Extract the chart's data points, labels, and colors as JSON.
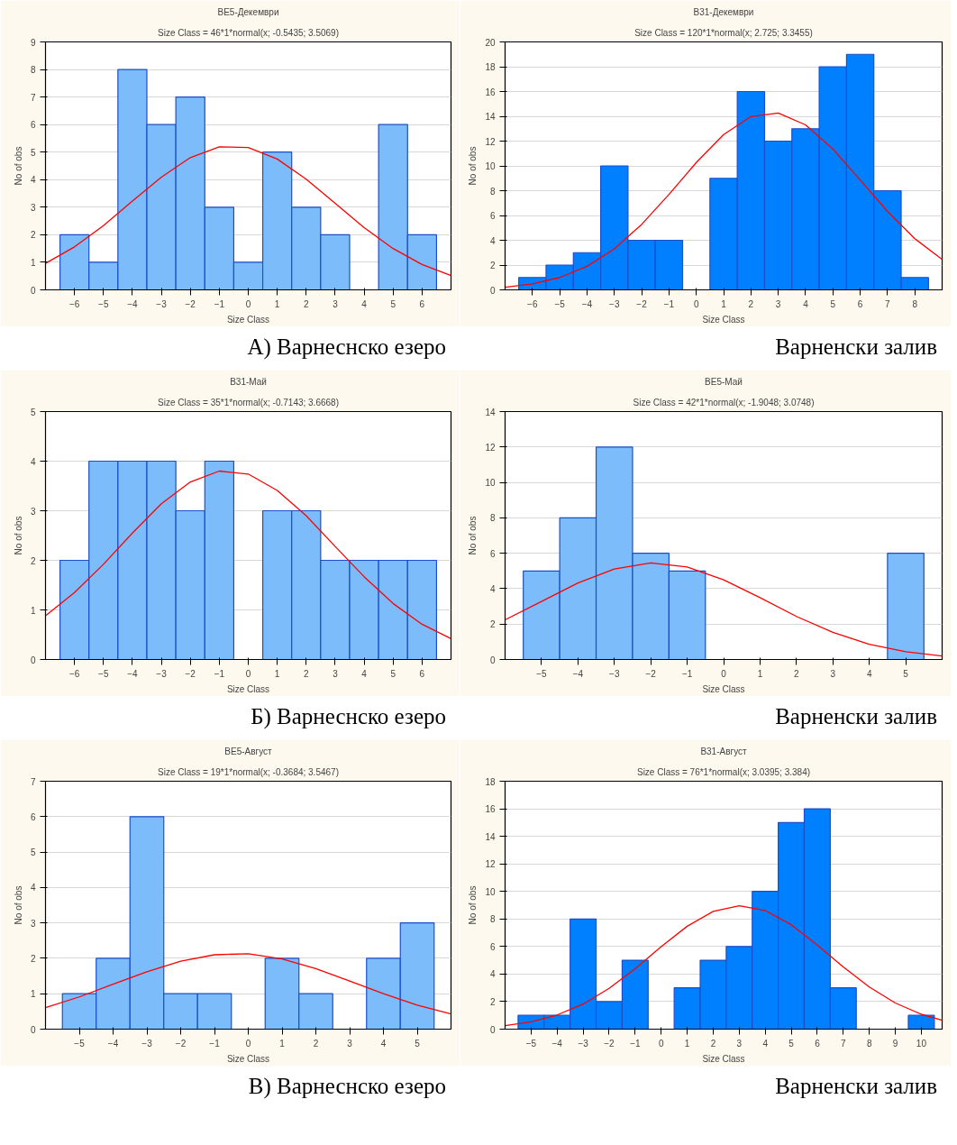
{
  "chart_data": [
    {
      "type": "histogram",
      "title": "BE5-Декември",
      "subtitle": "Size Class = 46*1*normal(x; -0.5435; 3.5069)",
      "xlabel": "Size Class",
      "ylabel": "No of obs",
      "xlim": [
        -7,
        7
      ],
      "ylim": [
        0,
        9
      ],
      "xticks": [
        -6,
        -5,
        -4,
        -3,
        -2,
        -1,
        0,
        1,
        2,
        3,
        4,
        5,
        6
      ],
      "yticks": [
        0,
        1,
        2,
        3,
        4,
        5,
        6,
        7,
        8,
        9
      ],
      "grid": "y",
      "annotations": [
        "А) Варнеснско езеро"
      ],
      "series": [
        {
          "color": "#7dbcfb",
          "bins": [
            -6.5,
            -5.5,
            -4.5,
            -3.5,
            -2.5,
            -1.5,
            -0.5,
            0.5,
            1.5,
            2.5,
            3.5,
            4.5,
            5.5,
            6.5
          ],
          "values": [
            2,
            1,
            8,
            6,
            7,
            3,
            1,
            5,
            3,
            2,
            0,
            6,
            2
          ]
        },
        {
          "type": "line",
          "color": "#ff0000",
          "x": [
            -7,
            -6,
            -5,
            -4,
            -3,
            -2,
            -1,
            0,
            1,
            2,
            3,
            4,
            5,
            6,
            7
          ],
          "values": [
            0.96,
            1.56,
            2.33,
            3.22,
            4.09,
            4.8,
            5.19,
            5.17,
            4.75,
            4.02,
            3.14,
            2.26,
            1.5,
            0.92,
            0.52
          ]
        }
      ]
    },
    {
      "type": "histogram",
      "title": "B31-Декември",
      "subtitle": "Size Class = 120*1*normal(x; 2.725; 3.3455)",
      "xlabel": "Size Class",
      "ylabel": "No of obs",
      "xlim": [
        -7,
        9
      ],
      "ylim": [
        0,
        20
      ],
      "xticks": [
        -6,
        -5,
        -4,
        -3,
        -2,
        -1,
        0,
        1,
        2,
        3,
        4,
        5,
        6,
        7,
        8
      ],
      "yticks": [
        0,
        2,
        4,
        6,
        8,
        10,
        12,
        14,
        16,
        18,
        20
      ],
      "grid": "y",
      "annotations": [
        "Варненски залив"
      ],
      "series": [
        {
          "color": "#0080ff",
          "bins": [
            -6.5,
            -5.5,
            -4.5,
            -3.5,
            -2.5,
            -1.5,
            -0.5,
            0.5,
            1.5,
            2.5,
            3.5,
            4.5,
            5.5,
            6.5,
            7.5,
            8.5
          ],
          "values": [
            1,
            2,
            3,
            10,
            4,
            4,
            0,
            9,
            16,
            12,
            13,
            18,
            19,
            8,
            1
          ]
        },
        {
          "type": "line",
          "color": "#ff0000",
          "x": [
            -7,
            -6,
            -5,
            -4,
            -3,
            -2,
            -1,
            0,
            1,
            2,
            3,
            4,
            5,
            6,
            7,
            8,
            9
          ],
          "values": [
            0.21,
            0.48,
            1.0,
            1.9,
            3.31,
            5.28,
            7.7,
            10.27,
            12.53,
            13.98,
            14.26,
            13.31,
            11.36,
            8.86,
            6.33,
            4.13,
            2.46
          ]
        }
      ]
    },
    {
      "type": "histogram",
      "title": "B31-Май",
      "subtitle": "Size Class = 35*1*normal(x; -0.7143; 3.6668)",
      "xlabel": "Size Class",
      "ylabel": "No of obs",
      "xlim": [
        -7,
        7
      ],
      "ylim": [
        0,
        5
      ],
      "xticks": [
        -6,
        -5,
        -4,
        -3,
        -2,
        -1,
        0,
        1,
        2,
        3,
        4,
        5,
        6
      ],
      "yticks": [
        0,
        1,
        2,
        3,
        4,
        5
      ],
      "grid": "y",
      "annotations": [
        "Б) Варнеснско езеро"
      ],
      "series": [
        {
          "color": "#7dbcfb",
          "bins": [
            -6.5,
            -5.5,
            -4.5,
            -3.5,
            -2.5,
            -1.5,
            -0.5,
            0.5,
            1.5,
            2.5,
            3.5,
            4.5,
            5.5,
            6.5
          ],
          "values": [
            2,
            4,
            4,
            4,
            3,
            4,
            0,
            3,
            3,
            2,
            2,
            2,
            2
          ]
        },
        {
          "type": "line",
          "color": "#ff0000",
          "x": [
            -7,
            -6,
            -5,
            -4,
            -3,
            -2,
            -1,
            0,
            1,
            2,
            3,
            4,
            5,
            6,
            7
          ],
          "values": [
            0.88,
            1.35,
            1.92,
            2.55,
            3.14,
            3.58,
            3.8,
            3.74,
            3.41,
            2.9,
            2.28,
            1.67,
            1.13,
            0.71,
            0.42
          ]
        }
      ]
    },
    {
      "type": "histogram",
      "title": "BE5-Май",
      "subtitle": "Size Class = 42*1*normal(x; -1.9048; 3.0748)",
      "xlabel": "Size Class",
      "ylabel": "No of obs",
      "xlim": [
        -6,
        6
      ],
      "ylim": [
        0,
        14
      ],
      "xticks": [
        -5,
        -4,
        -3,
        -2,
        -1,
        0,
        1,
        2,
        3,
        4,
        5
      ],
      "yticks": [
        0,
        2,
        4,
        6,
        8,
        10,
        12,
        14
      ],
      "grid": "y",
      "annotations": [
        "Варненски залив"
      ],
      "series": [
        {
          "color": "#7dbcfb",
          "bins": [
            -5.5,
            -4.5,
            -3.5,
            -2.5,
            -1.5,
            -0.5,
            0.5,
            1.5,
            2.5,
            3.5,
            4.5,
            5.5
          ],
          "values": [
            5,
            8,
            12,
            6,
            5,
            0,
            0,
            0,
            0,
            0,
            6
          ]
        },
        {
          "type": "line",
          "color": "#ff0000",
          "x": [
            -6,
            -5,
            -4,
            -3,
            -2,
            -1,
            0,
            1,
            2,
            3,
            4,
            5,
            6
          ],
          "values": [
            2.24,
            3.28,
            4.32,
            5.11,
            5.45,
            5.22,
            4.5,
            3.49,
            2.43,
            1.53,
            0.86,
            0.44,
            0.2
          ]
        }
      ]
    },
    {
      "type": "histogram",
      "title": "BE5-Август",
      "subtitle": "Size Class = 19*1*normal(x; -0.3684; 3.5467)",
      "xlabel": "Size Class",
      "ylabel": "No of obs",
      "xlim": [
        -6,
        6
      ],
      "ylim": [
        0,
        7
      ],
      "xticks": [
        -5,
        -4,
        -3,
        -2,
        -1,
        0,
        1,
        2,
        3,
        4,
        5
      ],
      "yticks": [
        0,
        1,
        2,
        3,
        4,
        5,
        6,
        7
      ],
      "grid": "y",
      "annotations": [
        "В) Варнеснско езеро"
      ],
      "series": [
        {
          "color": "#7dbcfb",
          "bins": [
            -5.5,
            -4.5,
            -3.5,
            -2.5,
            -1.5,
            -0.5,
            0.5,
            1.5,
            2.5,
            3.5,
            4.5,
            5.5
          ],
          "values": [
            1,
            2,
            6,
            1,
            1,
            0,
            2,
            1,
            0,
            2,
            3
          ]
        },
        {
          "type": "line",
          "color": "#ff0000",
          "x": [
            -6,
            -5,
            -4,
            -3,
            -2,
            -1,
            0,
            1,
            2,
            3,
            4,
            5,
            6
          ],
          "values": [
            0.61,
            0.91,
            1.27,
            1.62,
            1.92,
            2.1,
            2.13,
            1.98,
            1.71,
            1.36,
            1.0,
            0.68,
            0.43
          ]
        }
      ]
    },
    {
      "type": "histogram",
      "title": "B31-Август",
      "subtitle": "Size Class = 76*1*normal(x; 3.0395; 3.384)",
      "xlabel": "Size Class",
      "ylabel": "No of obs",
      "xlim": [
        -6,
        10.8
      ],
      "ylim": [
        0,
        18
      ],
      "xticks": [
        -5,
        -4,
        -3,
        -2,
        -1,
        0,
        1,
        2,
        3,
        4,
        5,
        6,
        7,
        8,
        9,
        10
      ],
      "yticks": [
        0,
        2,
        4,
        6,
        8,
        10,
        12,
        14,
        16,
        18
      ],
      "grid": "y",
      "annotations": [
        "Варненски залив"
      ],
      "series": [
        {
          "color": "#0080ff",
          "bins": [
            -5.5,
            -4.5,
            -3.5,
            -2.5,
            -1.5,
            -0.5,
            0.5,
            1.5,
            2.5,
            3.5,
            4.5,
            5.5,
            6.5,
            7.5,
            8.5,
            9.5,
            10.5
          ],
          "values": [
            1,
            1,
            8,
            2,
            5,
            0,
            3,
            5,
            6,
            10,
            15,
            16,
            3,
            0,
            0,
            1
          ]
        },
        {
          "type": "line",
          "color": "#ff0000",
          "x": [
            -6,
            -5,
            -4,
            -3,
            -2,
            -1,
            0,
            1,
            2,
            3,
            4,
            5,
            6,
            7,
            8,
            9,
            10,
            10.8
          ],
          "values": [
            0.25,
            0.53,
            1.03,
            1.82,
            2.96,
            4.39,
            5.99,
            7.47,
            8.55,
            8.96,
            8.61,
            7.58,
            6.11,
            4.52,
            3.06,
            1.9,
            1.08,
            0.65
          ]
        }
      ]
    }
  ]
}
